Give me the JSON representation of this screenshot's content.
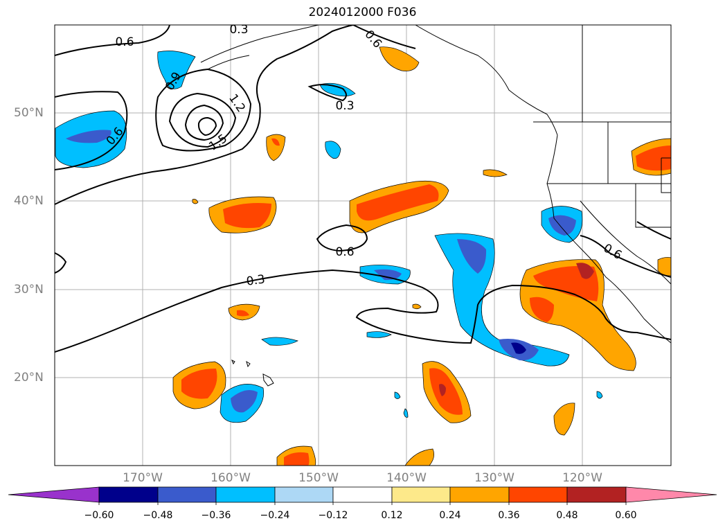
{
  "title": "2024012000 F036",
  "lat_labels": [
    "50°N",
    "40°N",
    "30°N",
    "20°N"
  ],
  "lon_labels": [
    "170°W",
    "160°W",
    "150°W",
    "140°W",
    "130°W",
    "120°W"
  ],
  "contour_labels": [
    "0.6",
    "0.9",
    "1.2",
    "1.5",
    "0.6",
    "0.3",
    "0.6",
    "0.3",
    "0.6",
    "0.6",
    "0.3"
  ],
  "colorbar": {
    "ticks": [
      "−0.60",
      "−0.48",
      "−0.36",
      "−0.24",
      "−0.12",
      "0.12",
      "0.24",
      "0.36",
      "0.48",
      "0.60"
    ],
    "colors": [
      "#9932cc",
      "#00008b",
      "#3a5bcc",
      "#00bfff",
      "#add8f5",
      "#ffffff",
      "#fde98a",
      "#ffa500",
      "#ff4500",
      "#b22222",
      "#ff88aa"
    ]
  }
}
